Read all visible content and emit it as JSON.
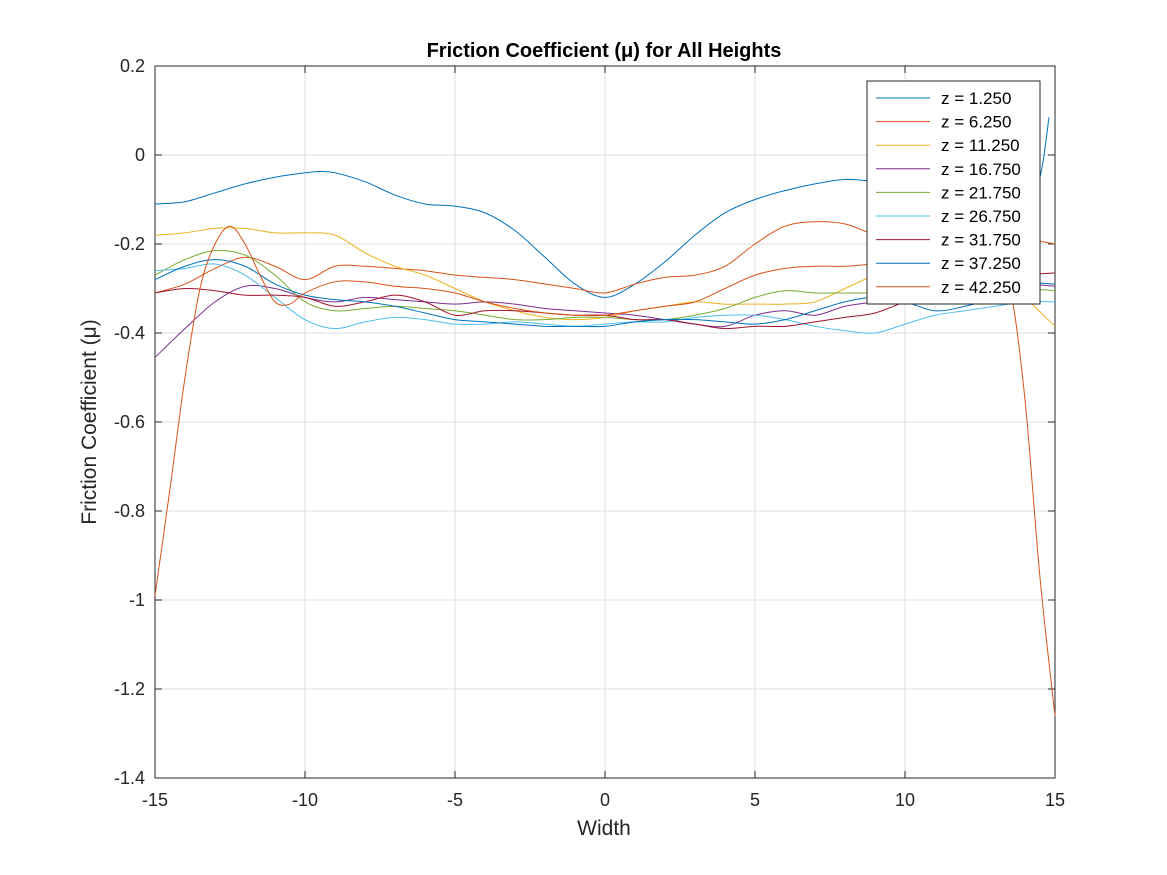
{
  "chart_data": {
    "type": "line",
    "title": "Friction Coefficient (μ) for All Heights",
    "xlabel": "Width",
    "ylabel": "Friction Coefficient (μ)",
    "xlim": [
      -15,
      15
    ],
    "ylim": [
      -1.4,
      0.2
    ],
    "xticks": [
      -15,
      -10,
      -5,
      0,
      5,
      10,
      15
    ],
    "xtick_labels": [
      "-15",
      "-10",
      "-5",
      "0",
      "5",
      "10",
      "15"
    ],
    "yticks": [
      -1.4,
      -1.2,
      -1,
      -0.8,
      -0.6,
      -0.4,
      -0.2,
      0,
      0.2
    ],
    "ytick_labels": [
      "-1.4",
      "-1.2",
      "-1",
      "-0.8",
      "-0.6",
      "-0.4",
      "-0.2",
      "0",
      "0.2"
    ],
    "grid": true,
    "legend_position": "top-right",
    "series": [
      {
        "name": "z = 1.250",
        "color": "#0072BD",
        "x": [
          -15,
          -14,
          -13,
          -12,
          -11,
          -10,
          -9.5,
          -9,
          -8,
          -7,
          -6,
          -5,
          -4,
          -3,
          -2,
          -1,
          0,
          1,
          2,
          3,
          4,
          5,
          6,
          7,
          8,
          9,
          10,
          11,
          12,
          13,
          14,
          14.5,
          14.8
        ],
        "y": [
          -0.11,
          -0.105,
          -0.085,
          -0.065,
          -0.05,
          -0.04,
          -0.037,
          -0.04,
          -0.06,
          -0.09,
          -0.11,
          -0.115,
          -0.13,
          -0.17,
          -0.23,
          -0.29,
          -0.32,
          -0.29,
          -0.24,
          -0.18,
          -0.13,
          -0.1,
          -0.08,
          -0.065,
          -0.055,
          -0.06,
          -0.07,
          -0.09,
          -0.1,
          -0.11,
          -0.12,
          -0.05,
          0.085
        ]
      },
      {
        "name": "z = 6.250",
        "color": "#D95319",
        "x": [
          -15,
          -14,
          -13,
          -12,
          -11,
          -10,
          -9,
          -8,
          -7,
          -6,
          -5,
          -4,
          -3,
          -2,
          -1,
          0,
          1,
          2,
          3,
          4,
          5,
          6,
          7,
          8,
          9,
          10,
          11,
          12,
          13,
          14,
          15
        ],
        "y": [
          -0.31,
          -0.29,
          -0.255,
          -0.23,
          -0.25,
          -0.28,
          -0.25,
          -0.25,
          -0.255,
          -0.26,
          -0.27,
          -0.275,
          -0.28,
          -0.29,
          -0.3,
          -0.31,
          -0.29,
          -0.275,
          -0.27,
          -0.25,
          -0.2,
          -0.16,
          -0.15,
          -0.155,
          -0.18,
          -0.2,
          -0.21,
          -0.22,
          -0.2,
          -0.19,
          -0.2
        ]
      },
      {
        "name": "z = 11.250",
        "color": "#EDB120",
        "x": [
          -15,
          -14,
          -13,
          -12,
          -11,
          -10,
          -9,
          -8,
          -7,
          -6,
          -5,
          -4,
          -3,
          -2,
          -1,
          0,
          1,
          2,
          3,
          4,
          5,
          6,
          7,
          8,
          9,
          10,
          11,
          12,
          13,
          14,
          15
        ],
        "y": [
          -0.18,
          -0.175,
          -0.165,
          -0.165,
          -0.175,
          -0.175,
          -0.18,
          -0.22,
          -0.25,
          -0.27,
          -0.3,
          -0.33,
          -0.35,
          -0.365,
          -0.37,
          -0.365,
          -0.35,
          -0.34,
          -0.33,
          -0.335,
          -0.335,
          -0.335,
          -0.33,
          -0.3,
          -0.27,
          -0.25,
          -0.24,
          -0.24,
          -0.26,
          -0.32,
          -0.385
        ]
      },
      {
        "name": "z = 16.750",
        "color": "#7E2F8E",
        "x": [
          -15,
          -14,
          -13,
          -12,
          -11,
          -10,
          -9,
          -8,
          -7,
          -6,
          -5,
          -4,
          -3,
          -2,
          -1,
          0,
          1,
          2,
          3,
          4,
          5,
          6,
          7,
          8,
          9,
          10,
          11,
          12,
          13,
          14,
          15
        ],
        "y": [
          -0.455,
          -0.39,
          -0.33,
          -0.295,
          -0.3,
          -0.32,
          -0.33,
          -0.32,
          -0.325,
          -0.33,
          -0.335,
          -0.33,
          -0.335,
          -0.345,
          -0.35,
          -0.355,
          -0.36,
          -0.37,
          -0.38,
          -0.385,
          -0.36,
          -0.35,
          -0.36,
          -0.34,
          -0.33,
          -0.32,
          -0.31,
          -0.3,
          -0.29,
          -0.29,
          -0.295
        ]
      },
      {
        "name": "z = 21.750",
        "color": "#77AC30",
        "x": [
          -15,
          -14,
          -13,
          -12,
          -11,
          -10,
          -9,
          -8,
          -7,
          -6,
          -5,
          -4,
          -3,
          -2,
          -1,
          0,
          1,
          2,
          3,
          4,
          5,
          6,
          7,
          8,
          9,
          10,
          11,
          12,
          13,
          14,
          15
        ],
        "y": [
          -0.27,
          -0.235,
          -0.215,
          -0.225,
          -0.27,
          -0.33,
          -0.35,
          -0.345,
          -0.34,
          -0.345,
          -0.35,
          -0.36,
          -0.37,
          -0.37,
          -0.365,
          -0.365,
          -0.37,
          -0.37,
          -0.36,
          -0.345,
          -0.32,
          -0.305,
          -0.31,
          -0.31,
          -0.31,
          -0.31,
          -0.305,
          -0.3,
          -0.3,
          -0.3,
          -0.305
        ]
      },
      {
        "name": "z = 26.750",
        "color": "#4DBEEE",
        "x": [
          -15,
          -14,
          -13,
          -12,
          -11,
          -10,
          -9,
          -8,
          -7,
          -6,
          -5,
          -4,
          -3,
          -2,
          -1,
          0,
          1,
          2,
          3,
          4,
          5,
          6,
          7,
          8,
          9,
          10,
          11,
          12,
          13,
          14,
          15
        ],
        "y": [
          -0.26,
          -0.255,
          -0.245,
          -0.27,
          -0.32,
          -0.37,
          -0.39,
          -0.375,
          -0.365,
          -0.37,
          -0.38,
          -0.38,
          -0.375,
          -0.38,
          -0.385,
          -0.38,
          -0.375,
          -0.375,
          -0.365,
          -0.36,
          -0.36,
          -0.37,
          -0.385,
          -0.395,
          -0.4,
          -0.38,
          -0.36,
          -0.35,
          -0.34,
          -0.33,
          -0.33
        ]
      },
      {
        "name": "z = 31.750",
        "color": "#A2142F",
        "x": [
          -15,
          -14,
          -13,
          -12,
          -11,
          -10,
          -9,
          -8,
          -7,
          -6,
          -5,
          -4,
          -3,
          -2,
          -1,
          0,
          1,
          2,
          3,
          4,
          5,
          6,
          7,
          8,
          9,
          10,
          11,
          12,
          13,
          14,
          15
        ],
        "y": [
          -0.31,
          -0.3,
          -0.305,
          -0.315,
          -0.315,
          -0.32,
          -0.34,
          -0.33,
          -0.315,
          -0.33,
          -0.36,
          -0.35,
          -0.35,
          -0.355,
          -0.36,
          -0.36,
          -0.37,
          -0.37,
          -0.38,
          -0.39,
          -0.385,
          -0.385,
          -0.375,
          -0.365,
          -0.355,
          -0.33,
          -0.31,
          -0.29,
          -0.28,
          -0.27,
          -0.265
        ]
      },
      {
        "name": "z = 37.250",
        "color": "#0072BD",
        "x": [
          -15,
          -14,
          -13,
          -12,
          -11,
          -10,
          -9,
          -8,
          -7,
          -6,
          -5,
          -4,
          -3,
          -2,
          -1,
          0,
          1,
          2,
          3,
          4,
          5,
          6,
          7,
          8,
          9,
          10,
          11,
          12,
          13,
          14,
          15
        ],
        "y": [
          -0.28,
          -0.25,
          -0.235,
          -0.25,
          -0.29,
          -0.315,
          -0.325,
          -0.33,
          -0.34,
          -0.355,
          -0.37,
          -0.375,
          -0.38,
          -0.385,
          -0.385,
          -0.385,
          -0.375,
          -0.37,
          -0.37,
          -0.375,
          -0.38,
          -0.37,
          -0.35,
          -0.33,
          -0.32,
          -0.33,
          -0.35,
          -0.34,
          -0.32,
          -0.29,
          -0.29
        ]
      },
      {
        "name": "z = 42.250",
        "color": "#D95319",
        "x": [
          -15,
          -14.5,
          -14,
          -13.5,
          -13,
          -12.5,
          -12,
          -11.5,
          -11,
          -10.5,
          -10,
          -9,
          -8,
          -7,
          -6,
          -5,
          -4,
          -3,
          -2,
          -1,
          0,
          1,
          2,
          3,
          4,
          5,
          6,
          7,
          8,
          9,
          10,
          11,
          12,
          13,
          13.5,
          14,
          14.5,
          15
        ],
        "y": [
          -0.99,
          -0.75,
          -0.5,
          -0.3,
          -0.2,
          -0.16,
          -0.2,
          -0.27,
          -0.33,
          -0.335,
          -0.31,
          -0.285,
          -0.285,
          -0.295,
          -0.3,
          -0.31,
          -0.33,
          -0.345,
          -0.355,
          -0.36,
          -0.36,
          -0.35,
          -0.34,
          -0.33,
          -0.3,
          -0.27,
          -0.255,
          -0.25,
          -0.25,
          -0.245,
          -0.245,
          -0.25,
          -0.255,
          -0.27,
          -0.3,
          -0.55,
          -0.95,
          -1.26
        ]
      }
    ]
  }
}
